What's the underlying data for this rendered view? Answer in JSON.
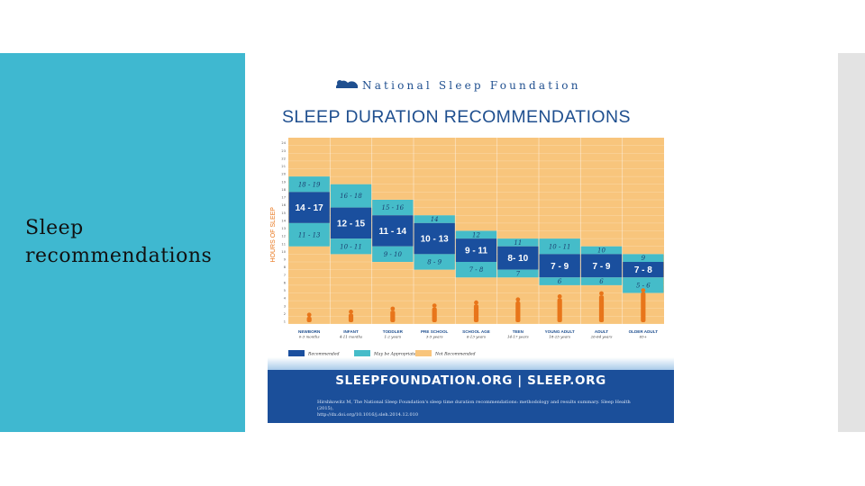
{
  "slide": {
    "title": "Sleep recommendations"
  },
  "poster": {
    "organization": "National Sleep Foundation",
    "footer_url": "SLEEPFOUNDATION.ORG | SLEEP.ORG",
    "footer_citation_line1": "Hirshkowitz M, The National Sleep Foundation's sleep time duration recommendations: methodology and results summary. Sleep Health (2015),",
    "footer_citation_line2": "http://dx.doi.org/10.1016/j.sleh.2014.12.010"
  },
  "colors": {
    "slide_panel": "#3fb8d0",
    "recommended": "#1a4f9e",
    "may_be_appropriate": "#45bcc9",
    "not_recommended": "#f8c57c",
    "brand_blue": "#1f4f8f"
  },
  "chart_data": {
    "type": "bar",
    "title": "SLEEP DURATION RECOMMENDATIONS",
    "ylabel": "HOURS OF SLEEP",
    "ylim": [
      1,
      24
    ],
    "grid": true,
    "legend_position": "bottom-left",
    "legend": [
      "Recommended",
      "May be Appropriate",
      "Not Recommended"
    ],
    "categories": [
      {
        "name": "NEWBORN",
        "age": "0-3 months",
        "recommended": [
          14,
          17
        ],
        "appropriate_low": [
          11,
          13
        ],
        "appropriate_high": [
          18,
          19
        ],
        "rec_label": "14 - 17",
        "low_label": "11 - 13",
        "high_label": "18 - 19"
      },
      {
        "name": "INFANT",
        "age": "4-11 months",
        "recommended": [
          12,
          15
        ],
        "appropriate_low": [
          10,
          11
        ],
        "appropriate_high": [
          16,
          18
        ],
        "rec_label": "12 - 15",
        "low_label": "10 - 11",
        "high_label": "16 - 18"
      },
      {
        "name": "TODDLER",
        "age": "1-2 years",
        "recommended": [
          11,
          14
        ],
        "appropriate_low": [
          9,
          10
        ],
        "appropriate_high": [
          15,
          16
        ],
        "rec_label": "11 - 14",
        "low_label": "9 - 10",
        "high_label": "15 - 16"
      },
      {
        "name": "PRE SCHOOL",
        "age": "3-5 years",
        "recommended": [
          10,
          13
        ],
        "appropriate_low": [
          8,
          9
        ],
        "appropriate_high": [
          14,
          14
        ],
        "rec_label": "10 - 13",
        "low_label": "8 - 9",
        "high_label": "14"
      },
      {
        "name": "SCHOOL AGE",
        "age": "6-13 years",
        "recommended": [
          9,
          11
        ],
        "appropriate_low": [
          7,
          8
        ],
        "appropriate_high": [
          12,
          12
        ],
        "rec_label": "9 - 11",
        "low_label": "7 - 8",
        "high_label": "12"
      },
      {
        "name": "TEEN",
        "age": "14-17 years",
        "recommended": [
          8,
          10
        ],
        "appropriate_low": [
          7,
          7
        ],
        "appropriate_high": [
          11,
          11
        ],
        "rec_label": "8- 10",
        "low_label": "7",
        "high_label": "11"
      },
      {
        "name": "YOUNG ADULT",
        "age": "18-25 years",
        "recommended": [
          7,
          9
        ],
        "appropriate_low": [
          6,
          6
        ],
        "appropriate_high": [
          10,
          11
        ],
        "rec_label": "7 - 9",
        "low_label": "6",
        "high_label": "10 - 11"
      },
      {
        "name": "ADULT",
        "age": "26-64 years",
        "recommended": [
          7,
          9
        ],
        "appropriate_low": [
          6,
          6
        ],
        "appropriate_high": [
          10,
          10
        ],
        "rec_label": "7 - 9",
        "low_label": "6",
        "high_label": "10"
      },
      {
        "name": "OLDER ADULT",
        "age": "65+",
        "recommended": [
          7,
          8
        ],
        "appropriate_low": [
          5,
          6
        ],
        "appropriate_high": [
          9,
          9
        ],
        "rec_label": "7 - 8",
        "low_label": "5 - 6",
        "high_label": "9"
      }
    ]
  }
}
